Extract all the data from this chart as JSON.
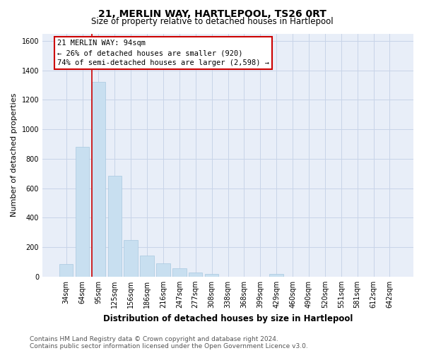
{
  "title": "21, MERLIN WAY, HARTLEPOOL, TS26 0RT",
  "subtitle": "Size of property relative to detached houses in Hartlepool",
  "xlabel": "Distribution of detached houses by size in Hartlepool",
  "ylabel": "Number of detached properties",
  "categories": [
    "34sqm",
    "64sqm",
    "95sqm",
    "125sqm",
    "156sqm",
    "186sqm",
    "216sqm",
    "247sqm",
    "277sqm",
    "308sqm",
    "338sqm",
    "368sqm",
    "399sqm",
    "429sqm",
    "460sqm",
    "490sqm",
    "520sqm",
    "551sqm",
    "581sqm",
    "612sqm",
    "642sqm"
  ],
  "values": [
    85,
    880,
    1320,
    685,
    250,
    143,
    88,
    55,
    28,
    18,
    0,
    0,
    0,
    18,
    0,
    0,
    0,
    0,
    0,
    0,
    0
  ],
  "bar_color": "#c8dff0",
  "bar_edge_color": "#a8c8e0",
  "highlight_bar_index": 2,
  "vline_color": "#cc0000",
  "annotation_title": "21 MERLIN WAY: 94sqm",
  "annotation_line1": "← 26% of detached houses are smaller (920)",
  "annotation_line2": "74% of semi-detached houses are larger (2,598) →",
  "annotation_box_color": "#ffffff",
  "annotation_box_edge": "#cc0000",
  "ylim": [
    0,
    1650
  ],
  "yticks": [
    0,
    200,
    400,
    600,
    800,
    1000,
    1200,
    1400,
    1600
  ],
  "grid_color": "#c8d4e8",
  "background_color": "#e8eef8",
  "footer_line1": "Contains HM Land Registry data © Crown copyright and database right 2024.",
  "footer_line2": "Contains public sector information licensed under the Open Government Licence v3.0.",
  "title_fontsize": 10,
  "subtitle_fontsize": 8.5,
  "xlabel_fontsize": 8.5,
  "ylabel_fontsize": 8,
  "tick_fontsize": 7,
  "annotation_title_fontsize": 8,
  "annotation_fontsize": 7.5,
  "footer_fontsize": 6.5
}
